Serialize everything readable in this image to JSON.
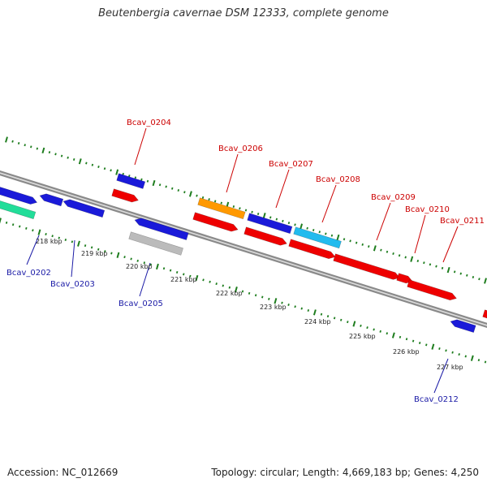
{
  "title": "Beutenbergia cavernae DSM 12333, complete genome",
  "accession": "Accession: NC_012669",
  "summary": "Topology: circular; Length: 4,669,183 bp; Genes: 4,250",
  "colors": {
    "background": "#ffffff",
    "backbone": "#8a8a8a",
    "tick_dots": "#1e7d1e",
    "upper_label": "#cc0000",
    "lower_label": "#1a1aa6",
    "gene_red": "#ee0000",
    "gene_blue": "#1a1ad9",
    "gene_orange": "#ff9900",
    "gene_cyan": "#22bbee",
    "gene_green": "#22dd99",
    "gene_gray": "#bbbbbb"
  },
  "scale": {
    "unit": "kbp",
    "ticks": [
      {
        "pos": 218,
        "label": "218 kbp"
      },
      {
        "pos": 219,
        "label": "219 kbp"
      },
      {
        "pos": 220,
        "label": "220 kbp"
      },
      {
        "pos": 221,
        "label": "221 kbp"
      },
      {
        "pos": 222,
        "label": "222 kbp"
      },
      {
        "pos": 223,
        "label": "223 kbp"
      },
      {
        "pos": 224,
        "label": "224 kbp"
      },
      {
        "pos": 225,
        "label": "225 kbp"
      },
      {
        "pos": 226,
        "label": "226 kbp"
      },
      {
        "pos": 227,
        "label": "227 kbp"
      }
    ]
  },
  "labels": [
    {
      "text": "Bcav_0202",
      "side": "lower",
      "color": "lower_label"
    },
    {
      "text": "Bcav_0203",
      "side": "lower",
      "color": "lower_label"
    },
    {
      "text": "Bcav_0204",
      "side": "upper",
      "color": "upper_label"
    },
    {
      "text": "Bcav_0205",
      "side": "lower",
      "color": "lower_label"
    },
    {
      "text": "Bcav_0206",
      "side": "upper",
      "color": "upper_label"
    },
    {
      "text": "Bcav_0207",
      "side": "upper",
      "color": "upper_label"
    },
    {
      "text": "Bcav_0208",
      "side": "upper",
      "color": "upper_label"
    },
    {
      "text": "Bcav_0209",
      "side": "upper",
      "color": "upper_label"
    },
    {
      "text": "Bcav_0210",
      "side": "upper",
      "color": "upper_label"
    },
    {
      "text": "Bcav_0211",
      "side": "upper",
      "color": "upper_label"
    },
    {
      "text": "Bcav_0212",
      "side": "lower",
      "color": "lower_label"
    }
  ]
}
